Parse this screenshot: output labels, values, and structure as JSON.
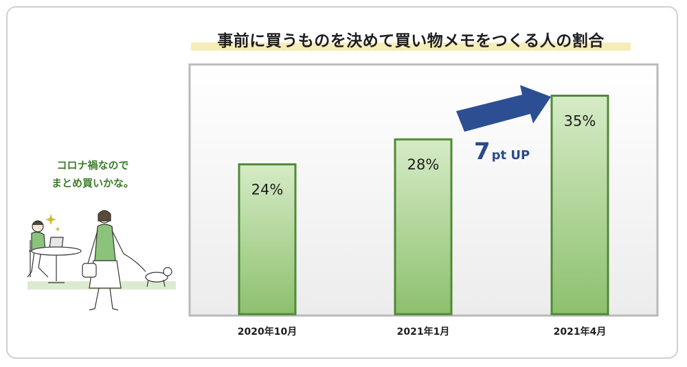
{
  "chart_data": {
    "type": "bar",
    "title": "事前に買うものを決めて買い物メモをつくる人の割合",
    "categories": [
      "2020年10月",
      "2021年1月",
      "2021年4月"
    ],
    "values": [
      24,
      28,
      35
    ],
    "value_labels": [
      "24%",
      "28%",
      "35%"
    ],
    "ylim": [
      0,
      40
    ],
    "grid": false,
    "bar_color": "#9fcd84",
    "bar_border_color": "#4f8a36",
    "annotation": {
      "number": "7",
      "text": "pt UP",
      "color": "#2b4a8b"
    }
  },
  "speech_bubble": {
    "line1": "コロナ禍なので",
    "line2": "まとめ買いかな。"
  },
  "illustration": {
    "icons": [
      "woman-with-laptop-icon",
      "woman-walking-dog-icon",
      "sparkle-icon"
    ]
  }
}
